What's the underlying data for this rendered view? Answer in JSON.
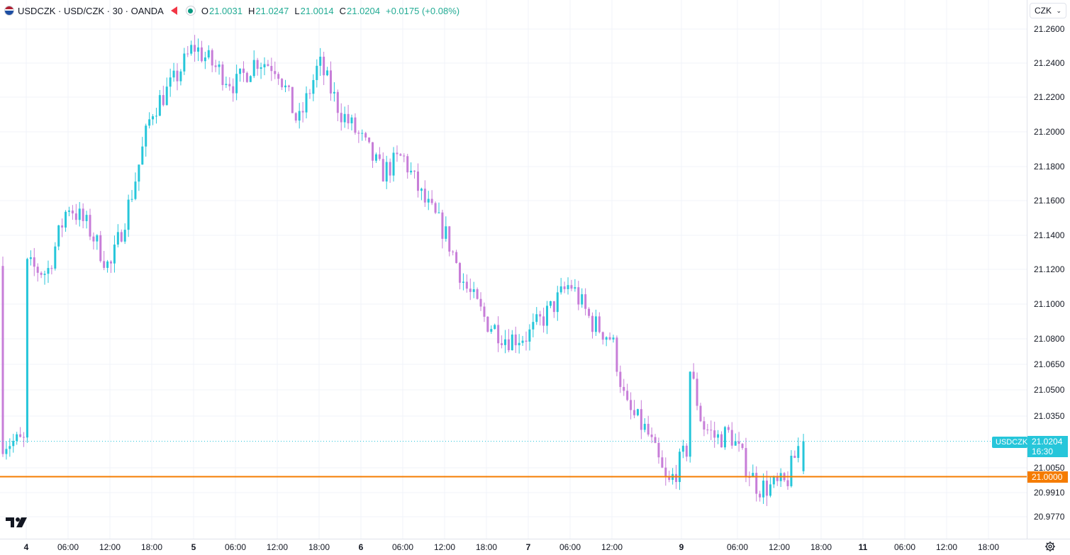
{
  "legend": {
    "symbol": "USDCZK · USD/CZK · 30 · OANDA",
    "open_label": "O",
    "open_value": "21.0031",
    "high_label": "H",
    "high_value": "21.0247",
    "low_label": "L",
    "low_value": "21.0014",
    "close_label": "C",
    "close_value": "21.0204",
    "change": "+0.0175 (+0.08%)"
  },
  "currency_select": {
    "value": "CZK"
  },
  "icons": {
    "flag": "us-flag-icon",
    "tag": "red-tag-icon",
    "status": "market-status-icon",
    "logo": "tradingview-logo-icon",
    "settings": "settings-gear-icon"
  },
  "colors": {
    "up": "#26c6da",
    "down": "#c77dd8",
    "level_line": "#f57c00",
    "last_price": "#26c6da",
    "grid": "#f0f3fa",
    "text": "#131722"
  },
  "chart_data": {
    "type": "candlestick",
    "interval": "30",
    "price_axis_ticks": [
      "21.2600",
      "21.2400",
      "21.2200",
      "21.2000",
      "21.1800",
      "21.1600",
      "21.1400",
      "21.1200",
      "21.1000",
      "21.0800",
      "21.0650",
      "21.0500",
      "21.0350",
      "21.0050",
      "20.9910",
      "20.9770"
    ],
    "time_axis_ticks": [
      "4",
      "06:00",
      "12:00",
      "18:00",
      "5",
      "06:00",
      "12:00",
      "18:00",
      "6",
      "06:00",
      "12:00",
      "18:00",
      "7",
      "06:00",
      "12:00",
      "9",
      "06:00",
      "12:00",
      "18:00",
      "11",
      "06:00",
      "12:00",
      "18:00"
    ],
    "last_price": {
      "symbol": "USDCZK",
      "value": "21.0204",
      "countdown": "16:30"
    },
    "horizontal_line": {
      "value": "21.0000"
    },
    "candle_anchors": [
      [
        "4 00:00",
        21.122
      ],
      [
        "4 03:00",
        21.118
      ],
      [
        "4 06:00",
        21.158
      ],
      [
        "4 09:00",
        21.144
      ],
      [
        "4 12:00",
        21.12
      ],
      [
        "4 15:00",
        21.162
      ],
      [
        "4 18:00",
        21.212
      ],
      [
        "4 21:00",
        21.228
      ],
      [
        "5 00:00",
        21.25
      ],
      [
        "5 03:00",
        21.238
      ],
      [
        "5 06:00",
        21.227
      ],
      [
        "5 09:00",
        21.242
      ],
      [
        "5 12:00",
        21.238
      ],
      [
        "5 15:00",
        21.204
      ],
      [
        "5 18:00",
        21.24
      ],
      [
        "5 21:00",
        21.212
      ],
      [
        "6 00:00",
        21.196
      ],
      [
        "6 03:00",
        21.176
      ],
      [
        "6 06:00",
        21.186
      ],
      [
        "6 09:00",
        21.16
      ],
      [
        "6 12:00",
        21.142
      ],
      [
        "6 15:00",
        21.11
      ],
      [
        "6 18:00",
        21.09
      ],
      [
        "6 21:00",
        21.08
      ],
      [
        "7 00:00",
        21.082
      ],
      [
        "7 03:00",
        21.096
      ],
      [
        "7 06:00",
        21.112
      ],
      [
        "7 09:00",
        21.09
      ],
      [
        "7 12:00",
        21.08
      ],
      [
        "7 14:00",
        21.04
      ],
      [
        "7 17:00",
        21.026
      ],
      [
        "7 20:00",
        20.994
      ],
      [
        "7 23:00",
        21.018
      ],
      [
        "9 00:00",
        21.045
      ],
      [
        "9 01:00",
        21.066
      ],
      [
        "9 03:00",
        21.03
      ],
      [
        "9 05:00",
        21.022
      ],
      [
        "9 07:00",
        21.025
      ],
      [
        "9 09:00",
        21.008
      ],
      [
        "9 11:00",
        20.994
      ],
      [
        "9 13:00",
        20.994
      ],
      [
        "9 15:00",
        20.996
      ],
      [
        "9 17:00",
        21.02
      ]
    ]
  }
}
